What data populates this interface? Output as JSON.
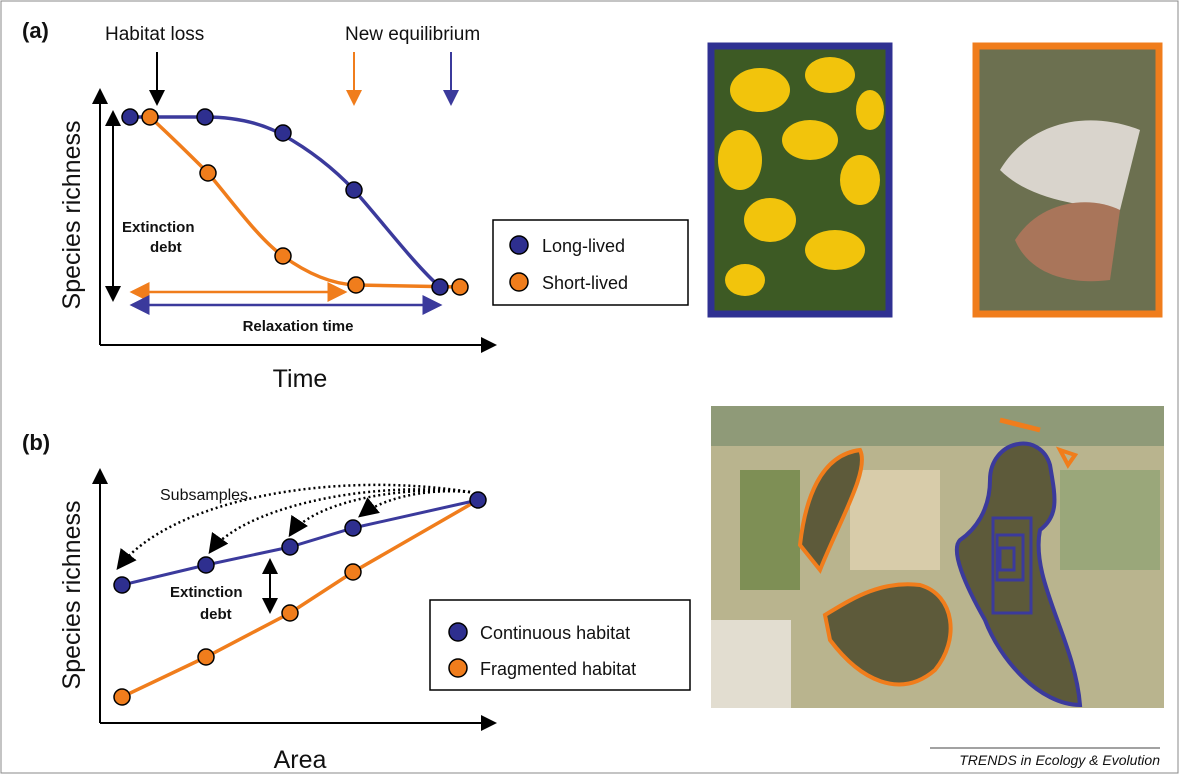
{
  "panel_a": {
    "label": "(a)",
    "habitat_loss": "Habitat loss",
    "new_equilibrium": "New equilibrium",
    "y_label": "Species richness",
    "x_label": "Time",
    "extinction_debt": [
      "Extinction",
      "debt"
    ],
    "relaxation_time": "Relaxation time",
    "legend": [
      "Long-lived",
      "Short-lived"
    ]
  },
  "panel_b": {
    "label": "(b)",
    "subsamples": "Subsamples",
    "y_label": "Species richness",
    "x_label": "Area",
    "extinction_debt": [
      "Extinction",
      "debt"
    ],
    "legend": [
      "Continuous habitat",
      "Fragmented habitat"
    ]
  },
  "footer": "TRENDS in Ecology & Evolution"
}
